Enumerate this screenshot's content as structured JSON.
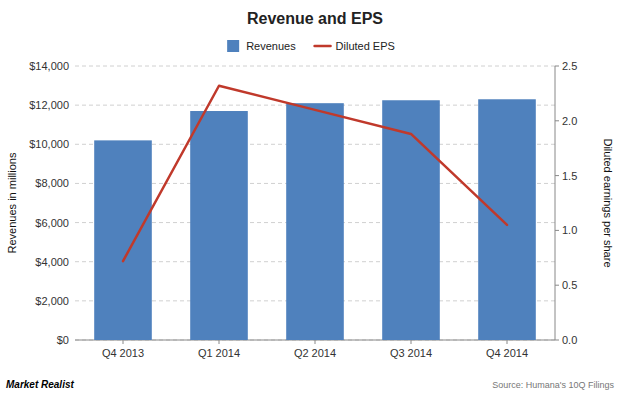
{
  "chart_data": {
    "type": "bar",
    "title": "Revenue and EPS",
    "categories": [
      "Q4 2013",
      "Q1 2014",
      "Q2 2014",
      "Q3 2014",
      "Q4 2014"
    ],
    "series": [
      {
        "name": "Revenues",
        "type": "bar",
        "color": "#4F81BD",
        "values": [
          10200,
          11700,
          12100,
          12250,
          12300
        ]
      },
      {
        "name": "Diluted EPS",
        "type": "line",
        "color": "#C0392B",
        "axis": "y2",
        "values": [
          0.72,
          2.32,
          2.1,
          1.88,
          1.05
        ]
      }
    ],
    "ylabel": "Revenues in millions",
    "y2label": "Diluted earnings per share",
    "ylim": [
      0,
      14000
    ],
    "yticks": [
      {
        "value": 0,
        "label": "$0"
      },
      {
        "value": 2000,
        "label": "$2,000"
      },
      {
        "value": 4000,
        "label": "$4,000"
      },
      {
        "value": 6000,
        "label": "$6,000"
      },
      {
        "value": 8000,
        "label": "$8,000"
      },
      {
        "value": 10000,
        "label": "$10,000"
      },
      {
        "value": 12000,
        "label": "$12,000"
      },
      {
        "value": 14000,
        "label": "$14,000"
      }
    ],
    "y2lim": [
      0,
      2.5
    ],
    "y2ticks": [
      {
        "value": 0.0,
        "label": "0.0"
      },
      0.5,
      {
        "value": 1.0,
        "label": "1.0"
      },
      1.5,
      {
        "value": 2.0,
        "label": "2.0"
      },
      2.5
    ],
    "grid": true,
    "legend": "top",
    "annotations": [
      "Market Realist",
      "Source: Humana's 10Q Filings"
    ]
  }
}
